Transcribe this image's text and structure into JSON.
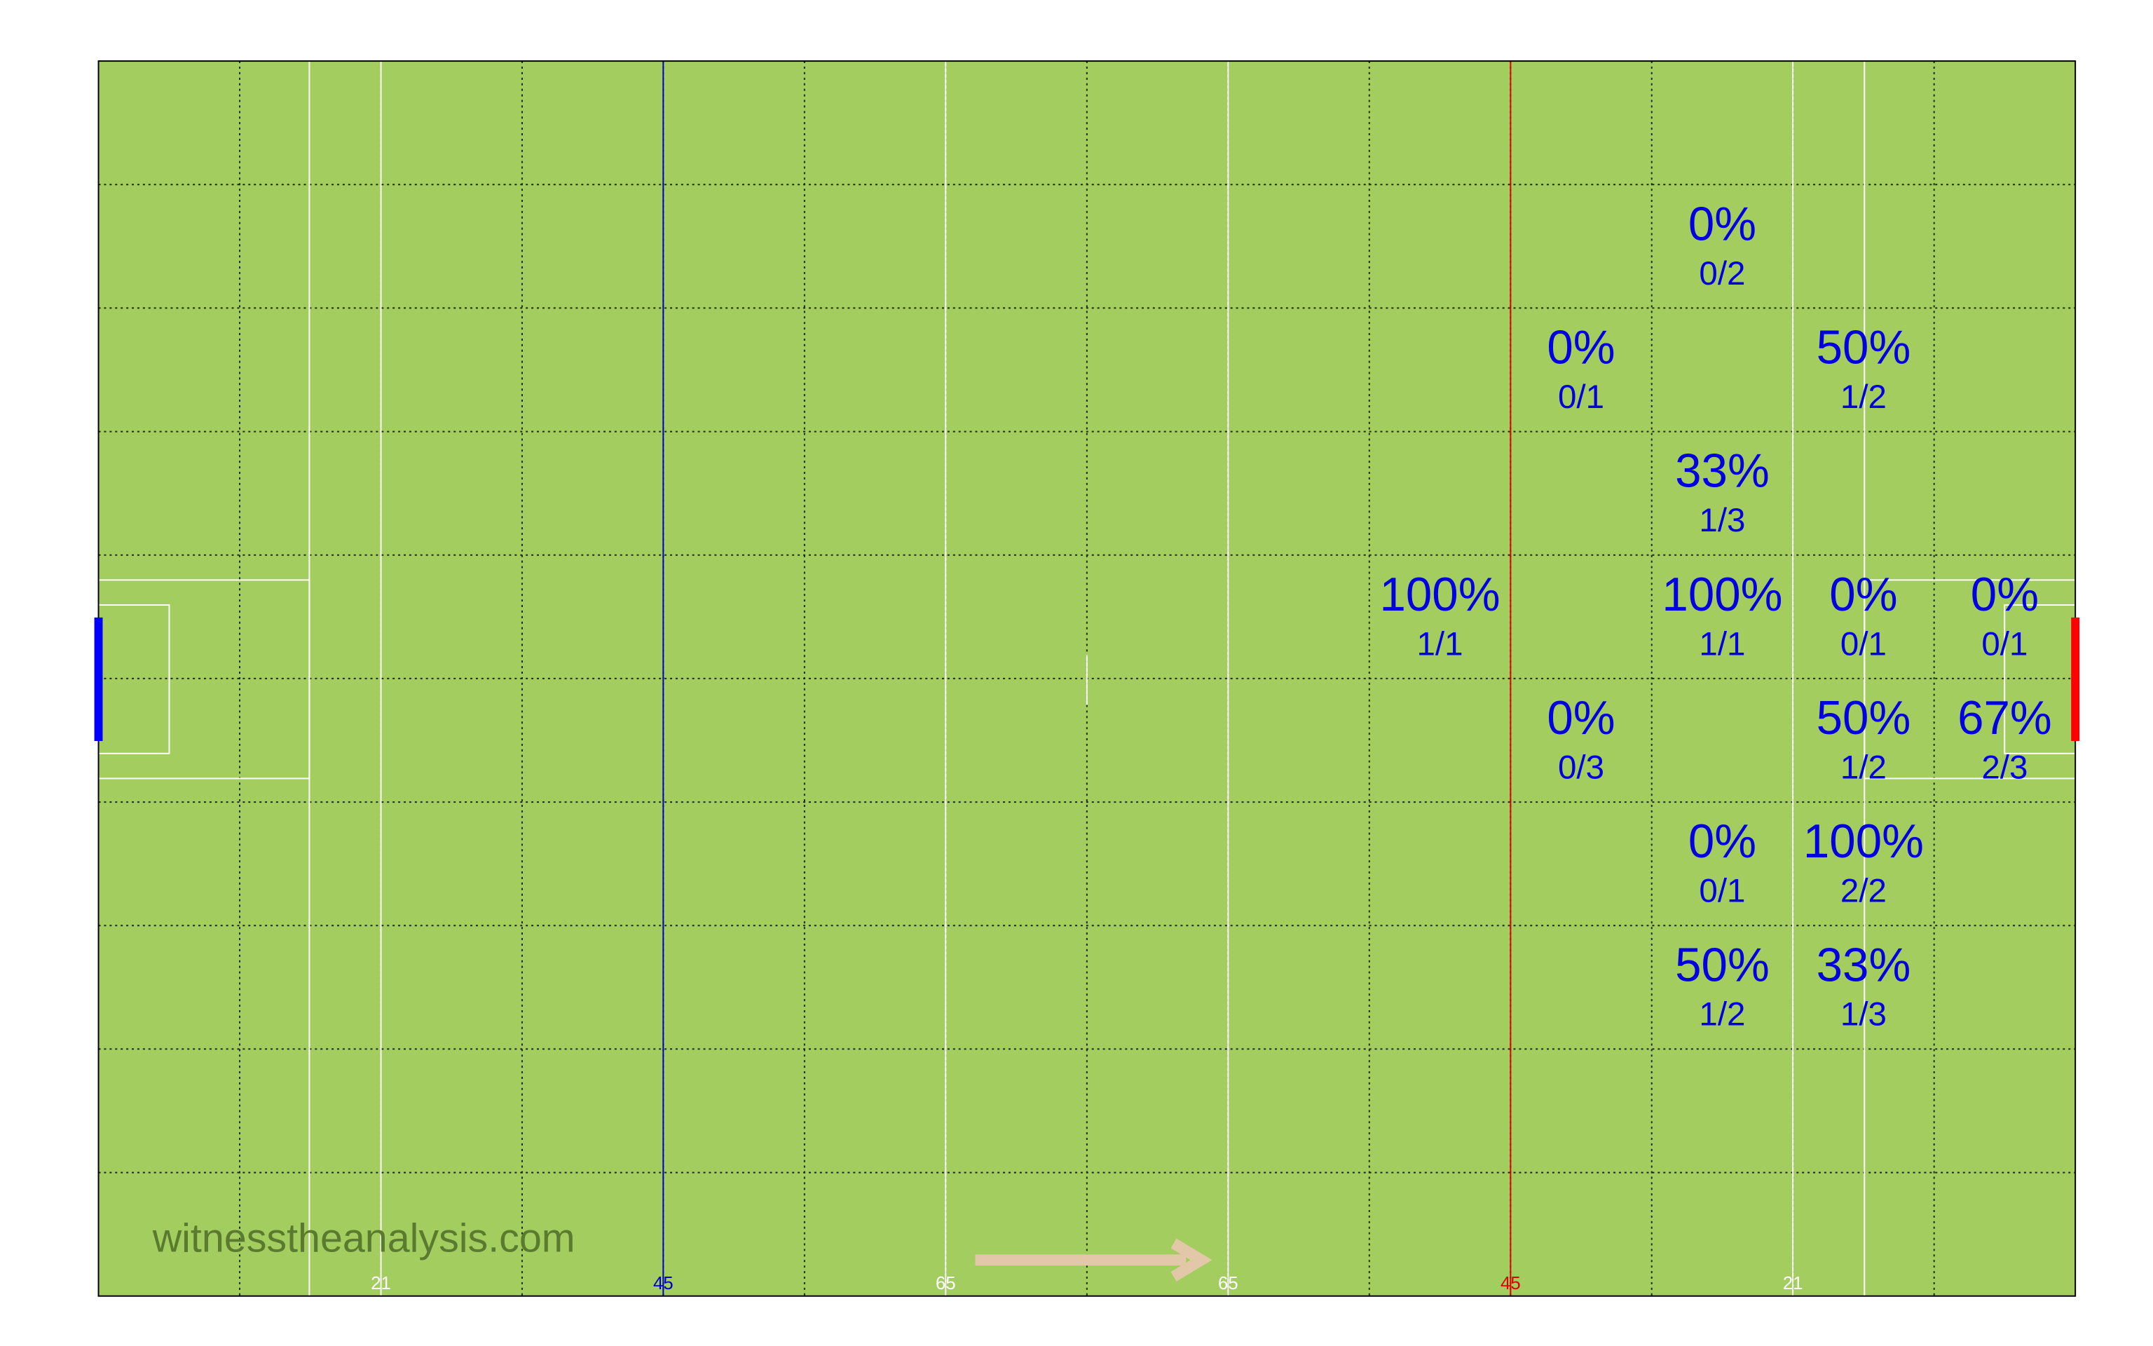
{
  "grid": {
    "rows": [
      [
        null,
        null,
        null,
        null,
        null,
        null,
        null,
        null,
        null,
        null,
        null,
        null,
        null,
        null
      ],
      [
        null,
        null,
        null,
        null,
        null,
        null,
        null,
        null,
        null,
        null,
        null,
        {
          "pct": "0%",
          "ratio": "0/2"
        },
        null,
        null
      ],
      [
        null,
        null,
        null,
        null,
        null,
        null,
        null,
        null,
        null,
        null,
        {
          "pct": "0%",
          "ratio": "0/1"
        },
        null,
        {
          "pct": "50%",
          "ratio": "1/2"
        },
        null
      ],
      [
        null,
        null,
        null,
        null,
        null,
        null,
        null,
        null,
        null,
        null,
        null,
        {
          "pct": "33%",
          "ratio": "1/3"
        },
        null,
        null
      ],
      [
        null,
        null,
        null,
        null,
        null,
        null,
        null,
        null,
        null,
        {
          "pct": "100%",
          "ratio": "1/1"
        },
        null,
        {
          "pct": "100%",
          "ratio": "1/1"
        },
        {
          "pct": "0%",
          "ratio": "0/1"
        },
        {
          "pct": "0%",
          "ratio": "0/1"
        }
      ],
      [
        null,
        null,
        null,
        null,
        null,
        null,
        null,
        null,
        null,
        null,
        {
          "pct": "0%",
          "ratio": "0/3"
        },
        null,
        {
          "pct": "50%",
          "ratio": "1/2"
        },
        {
          "pct": "67%",
          "ratio": "2/3"
        }
      ],
      [
        null,
        null,
        null,
        null,
        null,
        null,
        null,
        null,
        null,
        null,
        null,
        {
          "pct": "0%",
          "ratio": "0/1"
        },
        {
          "pct": "100%",
          "ratio": "2/2"
        },
        null
      ],
      [
        null,
        null,
        null,
        null,
        null,
        null,
        null,
        null,
        null,
        null,
        null,
        {
          "pct": "50%",
          "ratio": "1/2"
        },
        {
          "pct": "33%",
          "ratio": "1/3"
        },
        null
      ],
      [
        null,
        null,
        null,
        null,
        null,
        null,
        null,
        null,
        null,
        null,
        null,
        null,
        null,
        null
      ],
      [
        null,
        null,
        null,
        null,
        null,
        null,
        null,
        null,
        null,
        null,
        null,
        null,
        null,
        null
      ]
    ]
  },
  "pitch_labels": [
    "21",
    "45",
    "65",
    "65",
    "45",
    "21"
  ],
  "watermark": "witnesstheanalysis.com"
}
